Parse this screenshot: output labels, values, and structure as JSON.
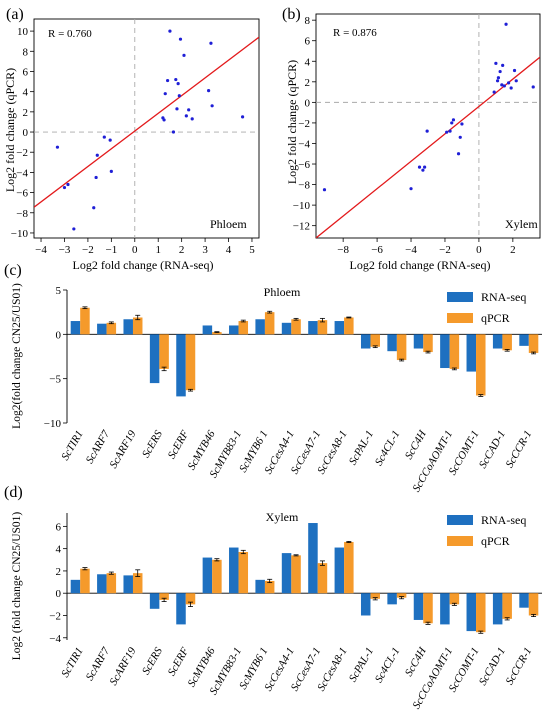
{
  "chart_data": [
    {
      "panel_label": "(a)",
      "type": "scatter",
      "annotation": "R = 0.760",
      "inset_label": "Phloem",
      "xlabel": "Log2 fold change (RNA-seq)",
      "ylabel": "Log2 fold change (qPCR)",
      "xlim": [
        -4.3,
        5.3
      ],
      "ylim": [
        -10.5,
        11.2
      ],
      "xticks": [
        -4,
        -3,
        -2,
        -1,
        0,
        1,
        2,
        3,
        4,
        5
      ],
      "yticks": [
        -10,
        -8,
        -6,
        -4,
        -2,
        0,
        2,
        4,
        6,
        8,
        10
      ],
      "fit_line": [
        [
          -4.3,
          -7.45
        ],
        [
          5.3,
          9.4
        ]
      ],
      "point_color": "#1f1fd6",
      "line_color": "#e31a1c",
      "points": [
        [
          -3.3,
          -1.5
        ],
        [
          -3.0,
          -5.5
        ],
        [
          -2.85,
          -5.2
        ],
        [
          -2.6,
          -9.6
        ],
        [
          -1.75,
          -7.5
        ],
        [
          -1.65,
          -4.5
        ],
        [
          -1.6,
          -2.3
        ],
        [
          -1.3,
          -0.5
        ],
        [
          -1.05,
          -0.8
        ],
        [
          -1.0,
          -3.9
        ],
        [
          1.2,
          1.4
        ],
        [
          1.25,
          1.2
        ],
        [
          1.3,
          3.8
        ],
        [
          1.4,
          5.1
        ],
        [
          1.5,
          10.0
        ],
        [
          1.65,
          0.0
        ],
        [
          1.75,
          5.2
        ],
        [
          1.8,
          2.3
        ],
        [
          1.85,
          4.8
        ],
        [
          1.9,
          3.6
        ],
        [
          1.95,
          9.2
        ],
        [
          2.1,
          7.6
        ],
        [
          2.2,
          1.6
        ],
        [
          2.3,
          2.2
        ],
        [
          2.45,
          1.3
        ],
        [
          3.15,
          4.1
        ],
        [
          3.25,
          8.8
        ],
        [
          3.3,
          2.6
        ],
        [
          4.6,
          1.5
        ]
      ]
    },
    {
      "panel_label": "(b)",
      "type": "scatter",
      "annotation": "R = 0.876",
      "inset_label": "Xylem",
      "xlabel": "Log2 fold change (RNA-seq)",
      "ylabel": "Log2 fold change (qPCR)",
      "xlim": [
        -9.6,
        3.6
      ],
      "ylim": [
        -13.2,
        8.6
      ],
      "xticks": [
        -8,
        -6,
        -4,
        -2,
        0,
        2
      ],
      "yticks": [
        -12,
        -10,
        -8,
        -6,
        -4,
        -2,
        0,
        2,
        4,
        6,
        8
      ],
      "fit_line": [
        [
          -9.6,
          -13.2
        ],
        [
          3.6,
          4.4
        ]
      ],
      "point_color": "#1f1fd6",
      "line_color": "#e31a1c",
      "points": [
        [
          -9.1,
          -8.5
        ],
        [
          -4.0,
          -8.4
        ],
        [
          -3.5,
          -6.3
        ],
        [
          -3.3,
          -6.6
        ],
        [
          -3.2,
          -6.3
        ],
        [
          -3.05,
          -2.8
        ],
        [
          -1.9,
          -2.9
        ],
        [
          -1.7,
          -2.8
        ],
        [
          -1.6,
          -2.0
        ],
        [
          -1.5,
          -1.7
        ],
        [
          -1.2,
          -5.0
        ],
        [
          -1.1,
          -3.4
        ],
        [
          -1.0,
          -2.1
        ],
        [
          0.9,
          1.0
        ],
        [
          1.0,
          3.8
        ],
        [
          1.1,
          2.1
        ],
        [
          1.15,
          2.4
        ],
        [
          1.25,
          3.0
        ],
        [
          1.35,
          1.7
        ],
        [
          1.4,
          3.6
        ],
        [
          1.5,
          1.6
        ],
        [
          1.6,
          7.6
        ],
        [
          1.75,
          1.9
        ],
        [
          1.9,
          1.4
        ],
        [
          2.1,
          3.1
        ],
        [
          2.2,
          2.1
        ],
        [
          3.2,
          1.5
        ]
      ]
    },
    {
      "panel_label": "(c)",
      "type": "bar",
      "title": "Phloem",
      "ylabel": "Log2(fold change CN25/US01)",
      "ylim": [
        -10,
        5
      ],
      "yticks": [
        -10,
        -5,
        0,
        5
      ],
      "categories": [
        "ScTIR1",
        "ScARF7",
        "ScARF19",
        "ScERS",
        "ScERF",
        "ScMYB46",
        "ScMYB83-1",
        "ScMYB6 1",
        "ScCesA4-1",
        "ScCesA7-1",
        "ScCesA8-1",
        "ScPAL-1",
        "Sc4CL-1",
        "ScC4H",
        "ScCCoAOMT-1",
        "ScCOMT-1",
        "ScCAD-1",
        "ScCCR-1"
      ],
      "legend_position": "top-right",
      "series": [
        {
          "name": "RNA-seq",
          "color": "#1e70c0",
          "values": [
            1.5,
            1.2,
            1.7,
            -5.5,
            -7.0,
            1.0,
            1.0,
            1.7,
            1.3,
            1.5,
            1.5,
            -1.6,
            -1.9,
            -1.6,
            -3.8,
            -4.2,
            -1.6,
            -1.3
          ]
        },
        {
          "name": "qPCR",
          "color": "#f59a2b",
          "values": [
            3.0,
            1.3,
            1.9,
            -3.9,
            -6.3,
            0.25,
            1.5,
            2.5,
            1.7,
            1.6,
            1.9,
            -1.4,
            -2.9,
            -2.0,
            -3.9,
            -6.9,
            -1.8,
            -2.1
          ]
        }
      ],
      "errors": [
        0.1,
        0.1,
        0.25,
        0.2,
        0.1,
        0.05,
        0.1,
        0.1,
        0.1,
        0.2,
        0.05,
        0.1,
        0.1,
        0.1,
        0.1,
        0.1,
        0.1,
        0.1
      ]
    },
    {
      "panel_label": "(d)",
      "type": "bar",
      "title": "Xylem",
      "ylabel": "Log2 (fold change CN25/US01)",
      "ylim": [
        -4.2,
        7.2
      ],
      "yticks": [
        -4,
        -2,
        0,
        2,
        4,
        6
      ],
      "categories": [
        "ScTIR1",
        "ScARF7",
        "ScARF19",
        "ScERS",
        "ScERF",
        "ScMYB46",
        "ScMYB83-1",
        "ScMYB6 1",
        "ScCesA4-1",
        "ScCesA7-1",
        "ScCesA8-1",
        "ScPAL-1",
        "Sc4CL-1",
        "ScC4H",
        "ScCCoAOMT-1",
        "ScCOMT-1",
        "ScCAD-1",
        "ScCCR-1"
      ],
      "legend_position": "top-right",
      "series": [
        {
          "name": "RNA-seq",
          "color": "#1e70c0",
          "values": [
            1.2,
            1.7,
            1.6,
            -1.4,
            -2.8,
            3.2,
            4.1,
            1.2,
            3.6,
            6.3,
            4.1,
            -2.0,
            -1.0,
            -2.4,
            -2.8,
            -3.4,
            -2.8,
            -1.3
          ]
        },
        {
          "name": "qPCR",
          "color": "#f59a2b",
          "values": [
            2.2,
            1.8,
            1.8,
            -0.6,
            -1.0,
            3.0,
            3.7,
            1.1,
            3.4,
            2.7,
            4.6,
            -0.5,
            -0.4,
            -2.7,
            -1.0,
            -3.5,
            -2.3,
            -2.0
          ]
        }
      ],
      "errors": [
        0.1,
        0.1,
        0.3,
        0.15,
        0.2,
        0.1,
        0.15,
        0.15,
        0.05,
        0.2,
        0.05,
        0.1,
        0.1,
        0.1,
        0.1,
        0.1,
        0.1,
        0.1
      ]
    }
  ]
}
